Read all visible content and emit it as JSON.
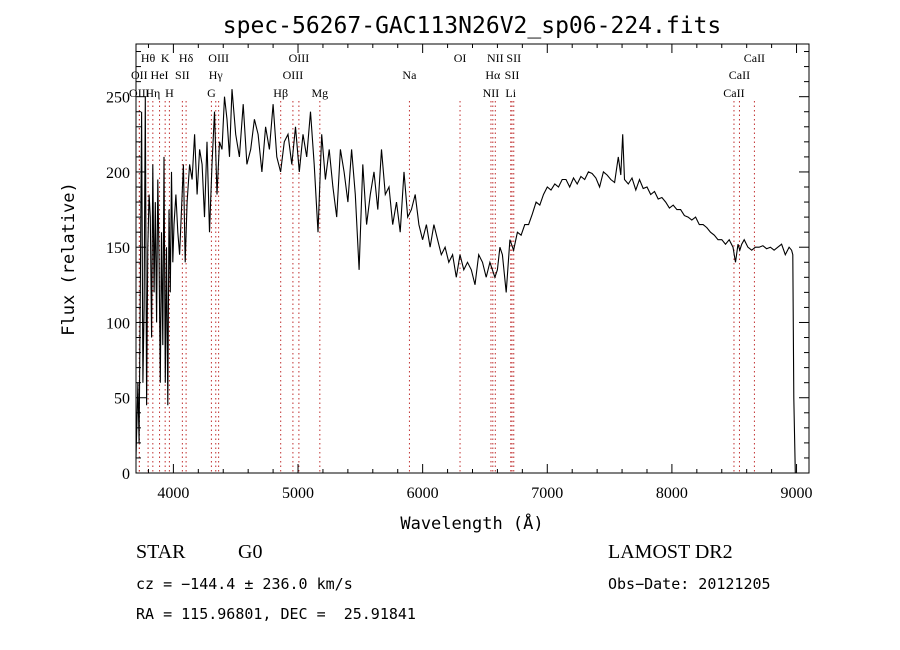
{
  "chart_data": {
    "type": "line",
    "title": "spec-56267-GAC113N26V2_sp06-224.fits",
    "xlabel": "Wavelength (Å)",
    "ylabel": "Flux (relative)",
    "xlim": [
      3700,
      9100
    ],
    "ylim": [
      0,
      285
    ],
    "x_ticks": [
      4000,
      5000,
      6000,
      7000,
      8000,
      9000
    ],
    "y_ticks": [
      0,
      50,
      100,
      150,
      200,
      250
    ],
    "grid": false,
    "series": [
      {
        "x": [
          3700,
          3715,
          3725,
          3735,
          3745,
          3755,
          3765,
          3775,
          3785,
          3795,
          3805,
          3815,
          3825,
          3835,
          3845,
          3855,
          3865,
          3875,
          3885,
          3895,
          3905,
          3915,
          3925,
          3935,
          3945,
          3955,
          3965,
          3975,
          3985,
          3995,
          4005,
          4020,
          4035,
          4050,
          4065,
          4080,
          4095,
          4110,
          4130,
          4150,
          4170,
          4190,
          4210,
          4230,
          4250,
          4270,
          4290,
          4310,
          4330,
          4350,
          4370,
          4390,
          4410,
          4430,
          4450,
          4470,
          4500,
          4530,
          4560,
          4590,
          4620,
          4650,
          4680,
          4710,
          4740,
          4770,
          4800,
          4830,
          4860,
          4890,
          4920,
          4950,
          4980,
          5010,
          5040,
          5070,
          5100,
          5130,
          5160,
          5190,
          5220,
          5250,
          5280,
          5310,
          5340,
          5370,
          5400,
          5430,
          5460,
          5490,
          5520,
          5550,
          5580,
          5610,
          5640,
          5670,
          5700,
          5730,
          5760,
          5790,
          5820,
          5850,
          5880,
          5910,
          5940,
          5970,
          6000,
          6030,
          6060,
          6090,
          6120,
          6150,
          6180,
          6210,
          6240,
          6270,
          6300,
          6330,
          6360,
          6390,
          6420,
          6450,
          6480,
          6510,
          6540,
          6560,
          6580,
          6600,
          6620,
          6640,
          6670,
          6700,
          6730,
          6760,
          6790,
          6820,
          6850,
          6880,
          6910,
          6940,
          6970,
          7000,
          7030,
          7060,
          7090,
          7120,
          7150,
          7180,
          7210,
          7240,
          7270,
          7300,
          7330,
          7360,
          7390,
          7420,
          7450,
          7480,
          7510,
          7540,
          7570,
          7590,
          7605,
          7620,
          7650,
          7680,
          7710,
          7740,
          7770,
          7800,
          7830,
          7860,
          7890,
          7920,
          7950,
          7980,
          8010,
          8040,
          8070,
          8100,
          8130,
          8160,
          8190,
          8220,
          8250,
          8280,
          8310,
          8340,
          8370,
          8400,
          8430,
          8460,
          8490,
          8510,
          8530,
          8545,
          8560,
          8580,
          8610,
          8640,
          8670,
          8700,
          8730,
          8760,
          8790,
          8820,
          8850,
          8880,
          8910,
          8940,
          8960,
          8970,
          8978,
          8985,
          8990
        ],
        "y": [
          10,
          60,
          20,
          130,
          240,
          60,
          110,
          250,
          45,
          150,
          185,
          170,
          90,
          205,
          120,
          180,
          100,
          195,
          140,
          60,
          160,
          85,
          210,
          60,
          150,
          45,
          175,
          120,
          200,
          140,
          165,
          185,
          160,
          145,
          175,
          205,
          140,
          180,
          205,
          195,
          225,
          185,
          215,
          205,
          170,
          220,
          160,
          205,
          240,
          185,
          220,
          215,
          250,
          235,
          210,
          255,
          225,
          210,
          245,
          205,
          215,
          235,
          225,
          200,
          230,
          215,
          245,
          210,
          200,
          220,
          225,
          205,
          230,
          200,
          225,
          210,
          240,
          205,
          160,
          225,
          195,
          215,
          190,
          170,
          215,
          200,
          180,
          215,
          185,
          135,
          205,
          165,
          185,
          200,
          175,
          215,
          185,
          190,
          165,
          180,
          160,
          200,
          170,
          175,
          185,
          165,
          155,
          165,
          150,
          165,
          155,
          145,
          150,
          140,
          145,
          130,
          145,
          135,
          140,
          135,
          125,
          145,
          140,
          130,
          140,
          135,
          130,
          135,
          150,
          145,
          120,
          155,
          148,
          160,
          158,
          165,
          165,
          172,
          180,
          178,
          185,
          190,
          188,
          192,
          190,
          195,
          195,
          190,
          196,
          192,
          197,
          195,
          200,
          199,
          196,
          190,
          200,
          198,
          195,
          193,
          210,
          198,
          225,
          195,
          192,
          196,
          188,
          195,
          189,
          190,
          185,
          187,
          182,
          183,
          180,
          176,
          178,
          175,
          175,
          171,
          170,
          168,
          170,
          165,
          165,
          163,
          160,
          158,
          155,
          155,
          152,
          155,
          150,
          140,
          152,
          148,
          152,
          155,
          150,
          148,
          150,
          150,
          151,
          149,
          150,
          148,
          150,
          152,
          145,
          150,
          148,
          145,
          50,
          20,
          0
        ]
      }
    ],
    "line_markers": [
      {
        "label": "OII",
        "x": 3727,
        "row": 2
      },
      {
        "label": "OIII",
        "x": 3727,
        "row": 3
      },
      {
        "label": "Hθ",
        "x": 3797,
        "row": 1
      },
      {
        "label": "Hη",
        "x": 3835,
        "row": 3
      },
      {
        "label": "HeI",
        "x": 3889,
        "row": 2
      },
      {
        "label": "K",
        "x": 3934,
        "row": 1
      },
      {
        "label": "H",
        "x": 3968,
        "row": 3
      },
      {
        "label": "SII",
        "x": 4072,
        "row": 2
      },
      {
        "label": "Hδ",
        "x": 4102,
        "row": 1
      },
      {
        "label": "G",
        "x": 4305,
        "row": 3
      },
      {
        "label": "Hγ",
        "x": 4340,
        "row": 2
      },
      {
        "label": "OIII",
        "x": 4363,
        "row": 1
      },
      {
        "label": "Hβ",
        "x": 4861,
        "row": 3
      },
      {
        "label": "OIII",
        "x": 4959,
        "row": 2
      },
      {
        "label": "OIII",
        "x": 5007,
        "row": 1
      },
      {
        "label": "Mg",
        "x": 5175,
        "row": 3
      },
      {
        "label": "Na",
        "x": 5894,
        "row": 2
      },
      {
        "label": "OI",
        "x": 6300,
        "row": 1
      },
      {
        "label": "NII",
        "x": 6548,
        "row": 3
      },
      {
        "label": "Hα",
        "x": 6563,
        "row": 2
      },
      {
        "label": "NII",
        "x": 6583,
        "row": 1
      },
      {
        "label": "SII",
        "x": 6717,
        "row": 2
      },
      {
        "label": "Li",
        "x": 6707,
        "row": 3
      },
      {
        "label": "SII",
        "x": 6731,
        "row": 1
      },
      {
        "label": "CaII",
        "x": 8498,
        "row": 3
      },
      {
        "label": "CaII",
        "x": 8542,
        "row": 2
      },
      {
        "label": "CaII",
        "x": 8662,
        "row": 1
      }
    ]
  },
  "info": {
    "class_label": "STAR",
    "subclass_label": "G0",
    "survey": "LAMOST DR2",
    "cz": "cz = −144.4 ± 236.0 km/s",
    "obs_date": "Obs−Date: 20121205",
    "coords": "RA = 115.96801, DEC =  25.91841"
  }
}
